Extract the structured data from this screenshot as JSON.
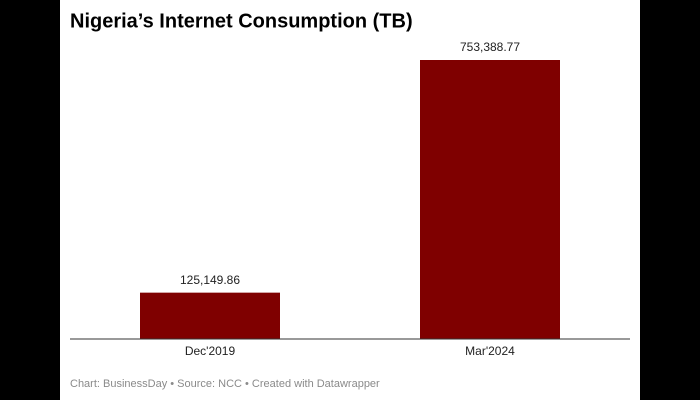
{
  "chart_data": {
    "type": "bar",
    "title": "Nigeria’s Internet Consumption (TB)",
    "categories": [
      "Dec'2019",
      "Mar'2024"
    ],
    "values": [
      125149.86,
      753388.77
    ],
    "value_labels": [
      "125,149.86",
      "753,388.77"
    ],
    "color": "#7f0000",
    "source": "Chart: BusinessDay • Source: NCC • Created with Datawrapper"
  }
}
